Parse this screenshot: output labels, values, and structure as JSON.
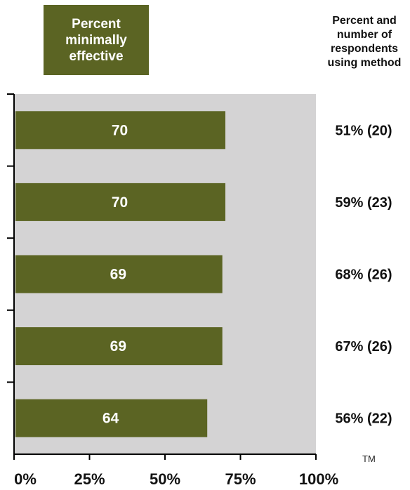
{
  "legend": {
    "label": "Percent minimally effective",
    "color": "#5b6423"
  },
  "column_header": "Percent and number of respondents using method",
  "trademark": "TM",
  "colors": {
    "bar": "#5b6423",
    "plot_background": "#d4d3d4",
    "bar_label": "#ffffff",
    "text": "#111111"
  },
  "chart_data": {
    "type": "bar",
    "orientation": "horizontal",
    "categories": [
      "",
      "",
      "",
      "",
      ""
    ],
    "values": [
      70,
      70,
      69,
      69,
      64
    ],
    "bar_labels": [
      "70",
      "70",
      "69",
      "69",
      "64"
    ],
    "right_labels": [
      "51% (20)",
      "59% (23)",
      "68% (26)",
      "67% (26)",
      "56% (22)"
    ],
    "xlim": [
      0,
      100
    ],
    "xticks": [
      0,
      25,
      50,
      75,
      100
    ],
    "xtick_labels": [
      "0%",
      "25%",
      "50%",
      "75%",
      "100%"
    ],
    "grid": false
  }
}
